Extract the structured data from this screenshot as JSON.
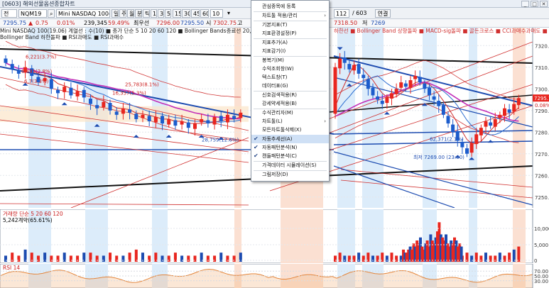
{
  "window": {
    "title": "[0603] 해외선물옵션종합차트",
    "controls": [
      "_",
      "□",
      "✕"
    ]
  },
  "toolbar": {
    "type_select": "전",
    "symbol_code": "NQM19",
    "symbol_name": "Mini NASDAQ 100(19.0",
    "period_buttons": [
      "일",
      "주",
      "월",
      "분",
      "틱",
      "1",
      "3",
      "5",
      "15",
      "30",
      "45",
      "60",
      "10"
    ],
    "interval_value": "10",
    "count_value": "112",
    "count_total": "/ 603",
    "link_button": "연결"
  },
  "price_row": {
    "current": "7295.75",
    "change": "0.75",
    "change_pct": "0.01%",
    "volume": "239,345",
    "volume_pct": "59.49%",
    "bid_label": "최우선",
    "bid": "7296.00",
    "ask": "7295.50",
    "open_label": "시",
    "open": "7302.75",
    "high_label": "고",
    "high": "7318.50",
    "low_label": "저",
    "low": "7269"
  },
  "indicators": {
    "line1": "Mini NASDAQ 100(19.06) 계열선 : 수(10)  ■ 종가 단순 5  10  20  60  120  ■ Bollinger Bands종료선 20,2  상한선  하한선  ■ 볼린",
    "line2": "Bollinger Band 하한돌파  ■ RSI과매도  ■ RSI과매수",
    "right_text": "하한선  ■ Bollinger Band 상향돌파  ■ MACD-sig돌파  ■ 골든크로스  ■ CCI과매수과매도  ■ 강세패턴  ■ 약세패",
    "colors": {
      "ma5": "#d0302f",
      "ma10": "#2a6cd0",
      "ma20": "#c22fb8",
      "bollinger": "#d23a3a",
      "up": "#e8261f",
      "down": "#1c5ccc"
    }
  },
  "price_axis": {
    "ticks": [
      "7320.00",
      "7310.00",
      "7300.00",
      "7290.00",
      "7280.00",
      "7270.00",
      "7260.00",
      "7250.00"
    ],
    "last_price": "7295.75",
    "last_pct": "0.08%"
  },
  "annotations": {
    "high_label": "6,221(3.7%)",
    "label2": "6,491(2.8%)",
    "label3": "6,7(3.3%)",
    "label4": "16,357(5.3%)",
    "label5": "25,783(8.1%)",
    "label6": "28,759(12.6%)",
    "label7": "62,371(2.1%)",
    "low_label": "최저 7269.00 (23:00)"
  },
  "volume_panel": {
    "title": "거래량  단순 5  20  60  120",
    "sub": "5,242계약(65.61%)",
    "ticks": [
      "10,000",
      "5,000",
      "0"
    ],
    "values": [
      2,
      3,
      2,
      4,
      3,
      2,
      3,
      2,
      2,
      3,
      2,
      2,
      3,
      3,
      2,
      2,
      3,
      2,
      2,
      3,
      4,
      3,
      2,
      3,
      2,
      2,
      3,
      2,
      2,
      2,
      3,
      2,
      2,
      3,
      2,
      2,
      3,
      2,
      3,
      2,
      2,
      2,
      3,
      2,
      3,
      2,
      2,
      3,
      2,
      3,
      2,
      2,
      3,
      2,
      2,
      3,
      2,
      2,
      3,
      2,
      3,
      4,
      3,
      2,
      2,
      3,
      2,
      3,
      2,
      3,
      2,
      2,
      3,
      2,
      3,
      4,
      5,
      4,
      3,
      3,
      4,
      5,
      4,
      6,
      5,
      7,
      6,
      8,
      5,
      4,
      6,
      7,
      5,
      9,
      7,
      6,
      8,
      10,
      13,
      9,
      8,
      7,
      9,
      6,
      5,
      7,
      6,
      8,
      7,
      5,
      6,
      5
    ]
  },
  "rsi_panel": {
    "title": "RSI 14",
    "ticks": [
      "70.00",
      "50.00",
      "30.00"
    ]
  },
  "context_menu": {
    "items": [
      {
        "label": "관심종목에 등록",
        "sep_after": true
      },
      {
        "label": "차트툴 적용/관리",
        "submenu": true,
        "sep_after": true
      },
      {
        "label": "기본지표(T)"
      },
      {
        "label": "지표환경설정(P)",
        "sep_after": true
      },
      {
        "label": "지표추가(A)"
      },
      {
        "label": "지표감기(I)",
        "sep_after": true
      },
      {
        "label": "봉복기(M)"
      },
      {
        "label": "수익조회창(W)"
      },
      {
        "label": "텍스트창(T)"
      },
      {
        "label": "데이터표(G)",
        "sep_after": true
      },
      {
        "label": "신호검색적용(R)"
      },
      {
        "label": "강세약세적용(B)",
        "sep_after": true
      },
      {
        "label": "수식관리자(M)"
      },
      {
        "label": "차트툴(L)",
        "submenu": true
      },
      {
        "label": "모든차트툴삭제(X)",
        "sep_after": true
      },
      {
        "label": "자동추세선(A)",
        "checked": true,
        "highlight": true
      },
      {
        "label": "자동패턴분석(N)",
        "checked": true
      },
      {
        "label": "캔들패턴분석(C)",
        "checked": true,
        "sep_after": true
      },
      {
        "label": "가격데이터 시뮬레이션(S)",
        "sep_after": true
      },
      {
        "label": "그림저장(D)"
      }
    ]
  }
}
